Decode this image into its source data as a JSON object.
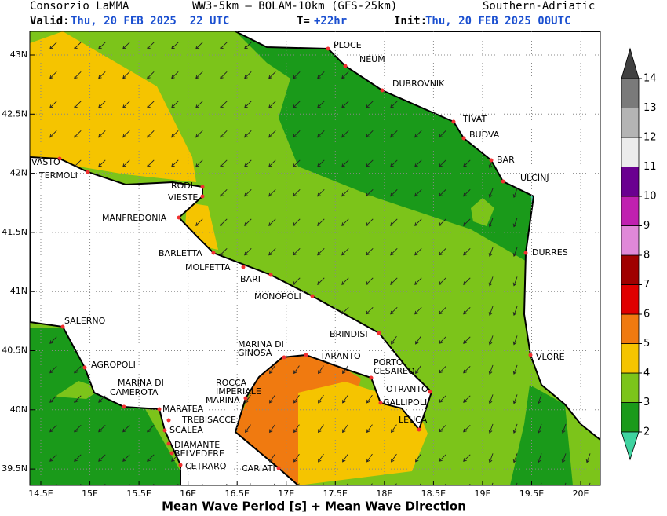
{
  "header": {
    "producer": "Consorzio LaMMA",
    "models": "WW3-5km – BOLAM-10km (GFS-25km)",
    "region": "Southern-Adriatic",
    "valid_label": "Valid:",
    "valid_time": "Thu, 20 FEB 2025  22 UTC",
    "lead_label": "T=",
    "lead_time": "+22hr",
    "init_label": "Init:",
    "init_time": "Thu, 20 FEB 2025 00UTC"
  },
  "map": {
    "lat_ticks": [
      {
        "value": 43,
        "label": "43N"
      },
      {
        "value": 42.5,
        "label": "42.5N"
      },
      {
        "value": 42,
        "label": "42N"
      },
      {
        "value": 41.5,
        "label": "41.5N"
      },
      {
        "value": 41,
        "label": "41N"
      },
      {
        "value": 40.5,
        "label": "40.5N"
      },
      {
        "value": 40,
        "label": "40N"
      },
      {
        "value": 39.5,
        "label": "39.5N"
      }
    ],
    "lon_ticks": [
      {
        "value": 14.5,
        "label": "14.5E"
      },
      {
        "value": 15,
        "label": "15E"
      },
      {
        "value": 15.5,
        "label": "15.5E"
      },
      {
        "value": 16,
        "label": "16E"
      },
      {
        "value": 16.5,
        "label": "16.5E"
      },
      {
        "value": 17,
        "label": "17E"
      },
      {
        "value": 17.5,
        "label": "17.5E"
      },
      {
        "value": 18,
        "label": "18E"
      },
      {
        "value": 18.5,
        "label": "18.5E"
      },
      {
        "value": 19,
        "label": "19E"
      },
      {
        "value": 19.5,
        "label": "19.5E"
      },
      {
        "value": 20,
        "label": "20E"
      }
    ],
    "cities": [
      [
        "PLOCE"
      ],
      [
        "NEUM"
      ],
      [
        "DUBROVNIK"
      ],
      [
        "TIVAT"
      ],
      [
        "BUDVA"
      ],
      [
        "BAR"
      ],
      [
        "ULCINJ"
      ],
      [
        "DURRES"
      ],
      [
        "VLORE"
      ],
      [
        "VASTO"
      ],
      [
        "TERMOLI"
      ],
      [
        "RODI"
      ],
      [
        "VIESTE"
      ],
      [
        "MANFREDONIA"
      ],
      [
        "BARLETTA"
      ],
      [
        "MOLFETTA"
      ],
      [
        "BARI"
      ],
      [
        "MONOPOLI"
      ],
      [
        "BRINDISI"
      ],
      [
        "MARINA DI",
        "GINOSA"
      ],
      [
        "TARANTO"
      ],
      [
        "PORTO",
        "CESAREO"
      ],
      [
        "OTRANTO"
      ],
      [
        "GALLIPOLI"
      ],
      [
        "LEUCA"
      ],
      [
        "SALERNO"
      ],
      [
        "AGROPOLI"
      ],
      [
        "MARINA DI CAMEROTA"
      ],
      [
        "ROCCA",
        "IMPERIALE",
        "MARINA"
      ],
      [
        "MARATEA"
      ],
      [
        "TREBISACCE"
      ],
      [
        "SCALEA"
      ],
      [
        "DIAMANTE"
      ],
      [
        "BELVEDERE"
      ],
      [
        "CETRARO"
      ],
      [
        "CARIATI"
      ]
    ]
  },
  "colorbar": {
    "ticks": [
      2,
      3,
      4,
      5,
      6,
      7,
      8,
      9,
      10,
      11,
      12,
      13,
      14
    ],
    "colors": [
      "#3fd3a0",
      "#1a9a1a",
      "#7cc41a",
      "#f5c400",
      "#f07a10",
      "#e00000",
      "#a00000",
      "#e088d8",
      "#c020b0",
      "#6a0090",
      "#ececec",
      "#b4b4b4",
      "#7a7a7a",
      "#404040"
    ]
  },
  "footer": "Mean Wave Period [s] + Mean Wave Direction"
}
